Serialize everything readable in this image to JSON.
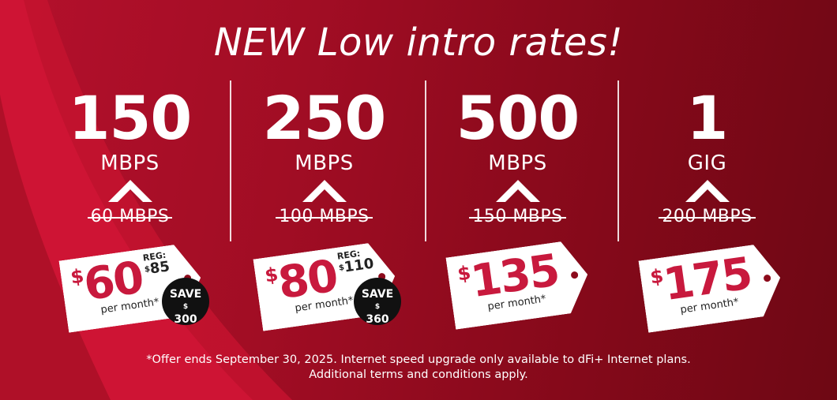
{
  "headline": "NEW Low intro rates!",
  "plans": [
    {
      "speed": "150",
      "unit": "MBPS",
      "old": "60 MBPS",
      "currency": "$",
      "price": "60",
      "per": "per month*",
      "reg_label": "REG:",
      "reg_cur": "$",
      "reg_amt": "85",
      "save_label": "SAVE",
      "save_cur": "$",
      "save_amt": "300"
    },
    {
      "speed": "250",
      "unit": "MBPS",
      "old": "100 MBPS",
      "currency": "$",
      "price": "80",
      "per": "per month*",
      "reg_label": "REG:",
      "reg_cur": "$",
      "reg_amt": "110",
      "save_label": "SAVE",
      "save_cur": "$",
      "save_amt": "360"
    },
    {
      "speed": "500",
      "unit": "MBPS",
      "old": "150 MBPS",
      "currency": "$",
      "price": "135",
      "per": "per month*"
    },
    {
      "speed": "1",
      "unit": "GIG",
      "old": "200 MBPS",
      "currency": "$",
      "price": "175",
      "per": "per month*"
    }
  ],
  "footnote_line1": "*Offer ends September 30, 2025. Internet speed upgrade only available to dFi+ Internet plans.",
  "footnote_line2": "Additional terms and conditions apply.",
  "colors": {
    "brand_red": "#c8193d",
    "background": "#a10d24",
    "badge": "#111111"
  },
  "icons": [
    "chevron-up-icon"
  ]
}
